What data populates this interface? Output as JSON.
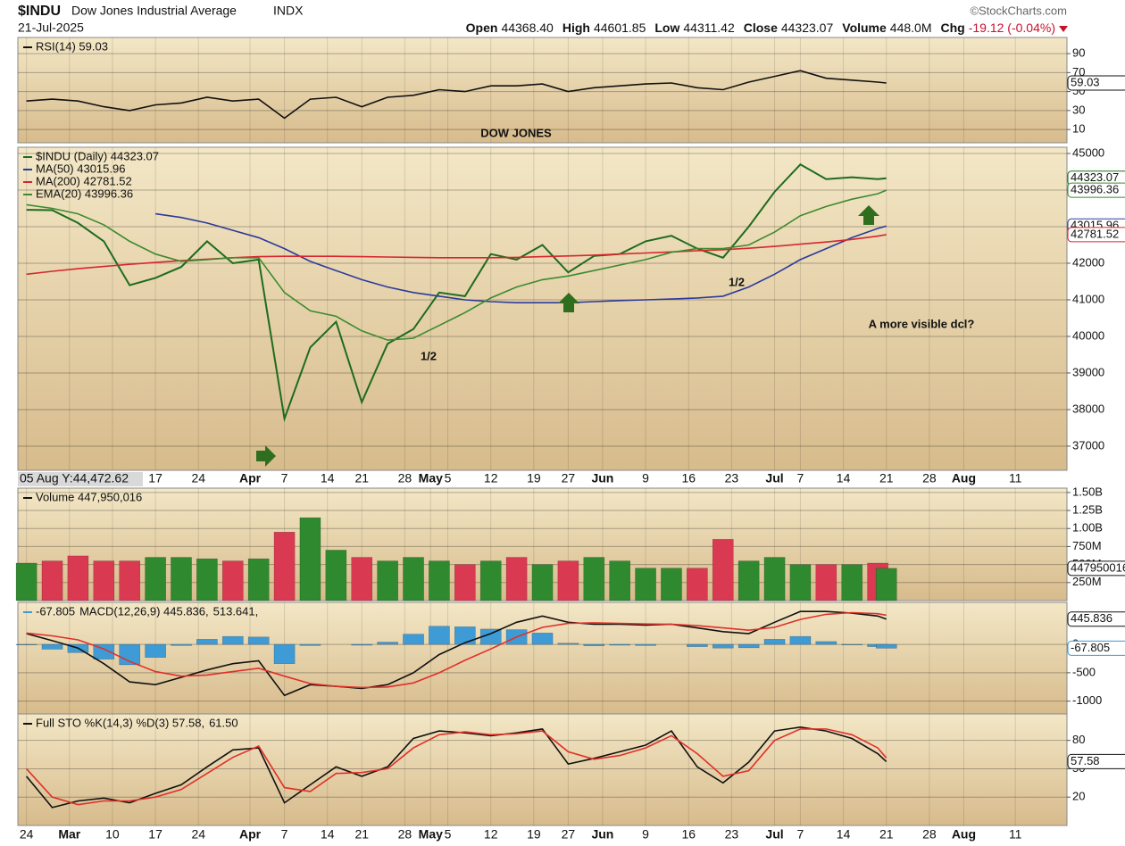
{
  "header": {
    "symbol": "$INDU",
    "name": "Dow Jones Industrial Average",
    "exchange": "INDX",
    "date": "21-Jul-2025",
    "source": "©StockCharts.com",
    "quote": [
      {
        "label": "Open",
        "value": "44368.40"
      },
      {
        "label": "High",
        "value": "44601.85"
      },
      {
        "label": "Low",
        "value": "44311.42"
      },
      {
        "label": "Close",
        "value": "44323.07"
      },
      {
        "label": "Volume",
        "value": "448.0M"
      },
      {
        "label": "Chg",
        "value": "-19.12 (-0.04%)"
      }
    ]
  },
  "chart_data": [
    {
      "type": "line",
      "legend": "stack",
      "grid": true,
      "x": [
        0,
        3,
        6,
        9,
        12,
        15,
        18,
        21,
        24,
        27,
        30,
        33,
        36,
        39,
        42,
        45,
        48,
        51,
        54,
        57,
        60,
        63,
        66,
        69,
        72,
        75,
        78,
        81,
        84,
        87,
        90,
        93,
        96,
        99,
        100
      ],
      "xlim": [
        -1,
        121
      ],
      "ylim": [
        -4,
        107
      ],
      "yticks": [
        90,
        70,
        50,
        30,
        10
      ],
      "series": [
        {
          "name": "RSI(14) 59.03",
          "color": "#111111",
          "tag": true,
          "values": [
            40,
            42,
            40,
            34,
            30,
            36,
            38,
            44,
            40,
            42,
            22,
            42,
            44,
            34,
            44,
            46,
            52,
            50,
            56,
            56,
            58,
            50,
            54,
            56,
            58,
            59,
            54,
            52,
            60,
            66,
            72,
            64,
            62,
            60,
            59.03
          ]
        }
      ]
    },
    {
      "type": "line",
      "legend": "stack",
      "grid": true,
      "x": [
        0,
        3,
        6,
        9,
        12,
        15,
        18,
        21,
        24,
        27,
        30,
        33,
        36,
        39,
        42,
        45,
        48,
        51,
        54,
        57,
        60,
        63,
        66,
        69,
        72,
        75,
        78,
        81,
        84,
        87,
        90,
        93,
        96,
        99,
        100
      ],
      "xlim": [
        -1,
        121
      ],
      "ylim": [
        36340,
        45170
      ],
      "yticks": [
        45000,
        44000,
        43000,
        42000,
        41000,
        40000,
        39000,
        38000,
        37000
      ],
      "xticks": [
        {
          "value": 0,
          "label": "24"
        },
        {
          "value": 5,
          "label": "Mar"
        },
        {
          "value": 10,
          "label": "10"
        },
        {
          "value": 15,
          "label": "17"
        },
        {
          "value": 20,
          "label": "24"
        },
        {
          "value": 26,
          "label": "Apr"
        },
        {
          "value": 30,
          "label": "7"
        },
        {
          "value": 35,
          "label": "14"
        },
        {
          "value": 39,
          "label": "21"
        },
        {
          "value": 44,
          "label": "28"
        },
        {
          "value": 47,
          "label": "May"
        },
        {
          "value": 49,
          "label": "5"
        },
        {
          "value": 54,
          "label": "12"
        },
        {
          "value": 59,
          "label": "19"
        },
        {
          "value": 63,
          "label": "27"
        },
        {
          "value": 67,
          "label": "Jun"
        },
        {
          "value": 72,
          "label": "9"
        },
        {
          "value": 77,
          "label": "16"
        },
        {
          "value": 82,
          "label": "23"
        },
        {
          "value": 87,
          "label": "Jul"
        },
        {
          "value": 90,
          "label": "7"
        },
        {
          "value": 95,
          "label": "14"
        },
        {
          "value": 100,
          "label": "21"
        },
        {
          "value": 105,
          "label": "28"
        },
        {
          "value": 109,
          "label": "Aug"
        },
        {
          "value": 115,
          "label": "11"
        }
      ],
      "cursor_label": "05 Aug Y:44,472.62",
      "annotations": [
        "DOW JONES",
        "1/2",
        "1/2",
        "A more visible dcl?"
      ],
      "series": [
        {
          "name": "$INDU (Daily) 44323.07",
          "color": "#1e6b1e",
          "tag": true,
          "values": [
            43460,
            43450,
            43100,
            42600,
            41400,
            41600,
            41900,
            42600,
            42000,
            42100,
            37750,
            39700,
            40400,
            38200,
            39800,
            40200,
            41200,
            41100,
            42250,
            42100,
            42500,
            41750,
            42200,
            42250,
            42600,
            42750,
            42400,
            42150,
            43000,
            43950,
            44700,
            44300,
            44350,
            44300,
            44323.07
          ]
        },
        {
          "name": "MA(50) 43015.96",
          "color": "#2b3a9b",
          "tag": true,
          "values": [
            null,
            null,
            null,
            null,
            null,
            43350,
            43250,
            43100,
            42900,
            42700,
            42400,
            42050,
            41800,
            41550,
            41350,
            41200,
            41100,
            41000,
            40950,
            40920,
            40920,
            40920,
            40950,
            40980,
            41000,
            41020,
            41050,
            41100,
            41350,
            41700,
            42100,
            42400,
            42700,
            42950,
            43015.96
          ]
        },
        {
          "name": "MA(200) 42781.52",
          "color": "#d6262f",
          "tag": true,
          "values": [
            41700,
            41780,
            41850,
            41910,
            41970,
            42020,
            42070,
            42110,
            42150,
            42180,
            42190,
            42190,
            42190,
            42180,
            42170,
            42160,
            42150,
            42150,
            42150,
            42160,
            42180,
            42200,
            42220,
            42250,
            42280,
            42310,
            42340,
            42370,
            42410,
            42460,
            42520,
            42580,
            42650,
            42740,
            42781.52
          ]
        },
        {
          "name": "EMA(20) 43996.36",
          "color": "#3d8a2e",
          "tag": true,
          "values": [
            43600,
            43500,
            43350,
            43050,
            42600,
            42250,
            42050,
            42100,
            42150,
            42150,
            41200,
            40700,
            40550,
            40150,
            39900,
            39950,
            40300,
            40650,
            41050,
            41350,
            41550,
            41650,
            41800,
            41950,
            42100,
            42300,
            42400,
            42400,
            42500,
            42850,
            43300,
            43550,
            43750,
            43900,
            43996.36
          ]
        }
      ]
    },
    {
      "type": "bar",
      "legend": "stack",
      "grid": true,
      "up_color": "#2f8a2f",
      "down_color": "#d93a52",
      "x": [
        0,
        3,
        6,
        9,
        12,
        15,
        18,
        21,
        24,
        27,
        30,
        33,
        36,
        39,
        42,
        45,
        48,
        51,
        54,
        57,
        60,
        63,
        66,
        69,
        72,
        75,
        78,
        81,
        84,
        87,
        90,
        93,
        96,
        99,
        100
      ],
      "xlim": [
        -1,
        121
      ],
      "ylim": [
        0,
        1560000000
      ],
      "yticks": [
        {
          "value": 1500000000,
          "label": "1.50B"
        },
        {
          "value": 1250000000,
          "label": "1.25B"
        },
        {
          "value": 1000000000,
          "label": "1.00B"
        },
        {
          "value": 750000000,
          "label": "750M"
        },
        {
          "value": 500000000,
          "label": "500M"
        },
        {
          "value": 250000000,
          "label": "250M"
        }
      ],
      "series": [
        {
          "name": "Volume 447,950,016",
          "color": "#111111",
          "tag": true,
          "values": [
            520000000,
            550000000,
            620000000,
            550000000,
            550000000,
            600000000,
            600000000,
            580000000,
            550000000,
            580000000,
            950000000,
            1150000000,
            700000000,
            600000000,
            550000000,
            600000000,
            550000000,
            500000000,
            550000000,
            600000000,
            500000000,
            550000000,
            600000000,
            550000000,
            450000000,
            450000000,
            450000000,
            850000000,
            550000000,
            600000000,
            500000000,
            500000000,
            500000000,
            520000000,
            447950016
          ]
        }
      ]
    },
    {
      "type": "line",
      "legend": "inline",
      "grid": true,
      "x": [
        0,
        3,
        6,
        9,
        12,
        15,
        18,
        21,
        24,
        27,
        30,
        33,
        36,
        39,
        42,
        45,
        48,
        51,
        54,
        57,
        60,
        63,
        66,
        69,
        72,
        75,
        78,
        81,
        84,
        87,
        90,
        93,
        96,
        99,
        100
      ],
      "xlim": [
        -1,
        121
      ],
      "ylim": [
        -1225,
        740
      ],
      "yticks": [
        0,
        -500,
        -1000
      ],
      "series": [
        {
          "name": "-67.805",
          "color": "#3f9bd6",
          "style": "bar",
          "tag": true,
          "values": [
            -10,
            -85,
            -145,
            -260,
            -360,
            -230,
            -20,
            90,
            140,
            130,
            -340,
            -20,
            0,
            -15,
            40,
            180,
            320,
            310,
            270,
            260,
            200,
            20,
            -25,
            -15,
            -20,
            0,
            -40,
            -65,
            -60,
            90,
            140,
            50,
            -10,
            -40,
            -67.805
          ]
        },
        {
          "name": "MACD(12,26,9) 445.836,",
          "color": "#111111",
          "tag": true,
          "values": [
            190,
            65,
            -65,
            -340,
            -660,
            -710,
            -580,
            -450,
            -340,
            -290,
            -900,
            -710,
            -740,
            -775,
            -710,
            -500,
            -180,
            30,
            190,
            390,
            500,
            390,
            355,
            355,
            340,
            355,
            290,
            225,
            190,
            390,
            580,
            580,
            550,
            500,
            445.836
          ]
        },
        {
          "name": "513.641,",
          "color": "#e0302a",
          "values": [
            200,
            150,
            80,
            -80,
            -300,
            -480,
            -560,
            -540,
            -480,
            -420,
            -560,
            -690,
            -740,
            -760,
            -750,
            -680,
            -500,
            -280,
            -80,
            130,
            300,
            370,
            380,
            370,
            360,
            355,
            330,
            290,
            250,
            300,
            440,
            530,
            560,
            540,
            513.641
          ]
        }
      ]
    },
    {
      "type": "line",
      "legend": "inline",
      "grid": true,
      "x": [
        0,
        3,
        6,
        9,
        12,
        15,
        18,
        21,
        24,
        27,
        30,
        33,
        36,
        39,
        42,
        45,
        48,
        51,
        54,
        57,
        60,
        63,
        66,
        69,
        72,
        75,
        78,
        81,
        84,
        87,
        90,
        93,
        96,
        99,
        100
      ],
      "xlim": [
        -1,
        121
      ],
      "ylim": [
        -10,
        108
      ],
      "yticks": [
        80,
        50,
        20
      ],
      "series": [
        {
          "name": "Full STO %K(14,3) %D(3) 57.58,",
          "color": "#111111",
          "tag": true,
          "values": [
            42,
            9,
            16,
            19,
            14,
            24,
            33,
            52,
            70,
            72,
            14,
            33,
            52,
            42,
            52,
            82,
            90,
            88,
            85,
            88,
            92,
            55,
            61,
            68,
            75,
            90,
            52,
            35,
            57,
            90,
            94,
            90,
            82,
            66,
            57.58
          ]
        },
        {
          "name": "61.50",
          "color": "#e0302a",
          "values": [
            50,
            20,
            12,
            16,
            16,
            20,
            28,
            45,
            62,
            74,
            30,
            26,
            45,
            46,
            50,
            72,
            86,
            89,
            86,
            87,
            90,
            68,
            60,
            64,
            72,
            85,
            66,
            42,
            48,
            80,
            92,
            92,
            86,
            72,
            61.5
          ]
        }
      ]
    }
  ]
}
